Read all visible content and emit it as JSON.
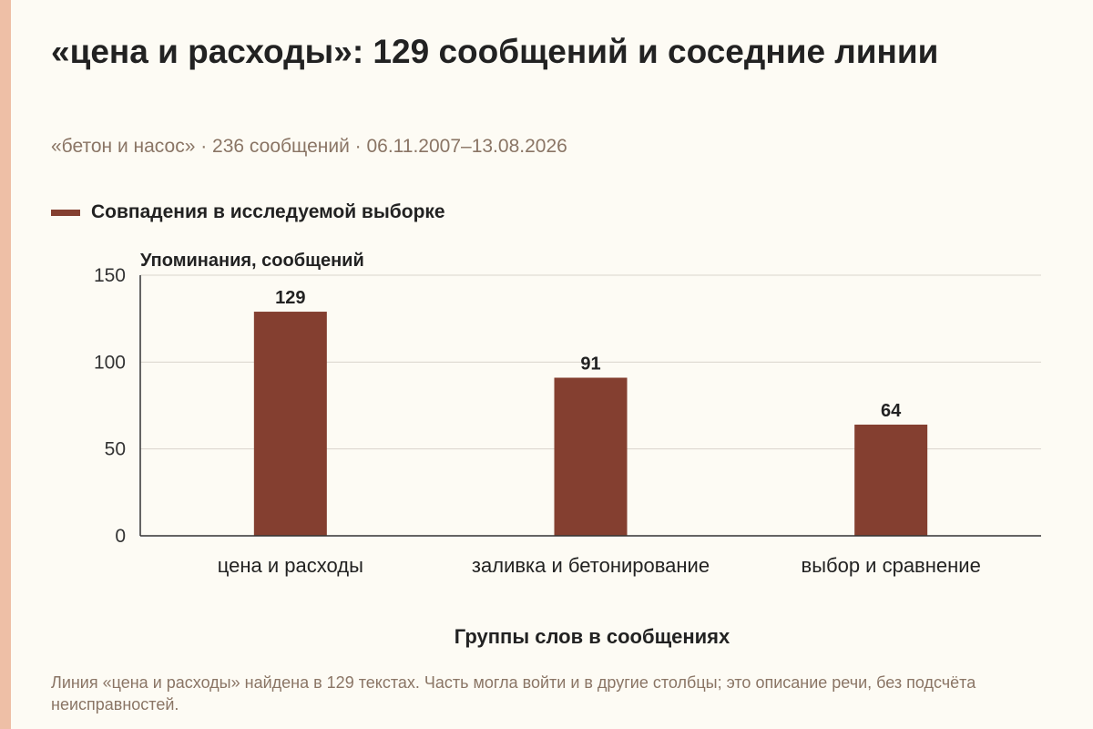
{
  "header": {
    "title": "«цена и расходы»: 129 сообщений и соседние линии",
    "subtitle": "«бетон и насос» · 236 сообщений · 06.11.2007–13.08.2026"
  },
  "legend": {
    "label": "Совпадения в исследуемой выборке"
  },
  "note": "Линия «цена и расходы» найдена в 129 текстах. Часть могла войти и в другие столбцы; это описание речи, без подсчёта неисправностей.",
  "colors": {
    "bar": "#843f30",
    "grid": "#d9d4cc",
    "axis": "#333333"
  },
  "chart_data": {
    "type": "bar",
    "categories": [
      "цена и расходы",
      "заливка и бетонирование",
      "выбор и сравнение"
    ],
    "series": [
      {
        "name": "Совпадения в исследуемой выборке",
        "values": [
          129,
          91,
          64
        ]
      }
    ],
    "ylabel": "Упоминания, сообщений",
    "xlabel": "Группы слов в сообщениях",
    "ylim": [
      0,
      150
    ],
    "yticks": [
      0,
      50,
      100,
      150
    ],
    "grid": true,
    "data_labels": true,
    "legend_position": "top-left"
  }
}
